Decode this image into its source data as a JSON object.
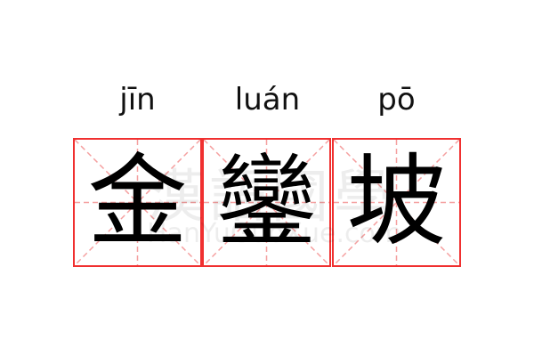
{
  "pinyin": [
    "jīn",
    "luán",
    "pō"
  ],
  "characters": [
    "金",
    "鑾",
    "坡"
  ],
  "watermark": {
    "text": "漢語國學",
    "url": "HanYuGuoXue.com"
  },
  "colors": {
    "border": "#f03030",
    "guide": "#f5a0a0",
    "text": "#000000"
  }
}
